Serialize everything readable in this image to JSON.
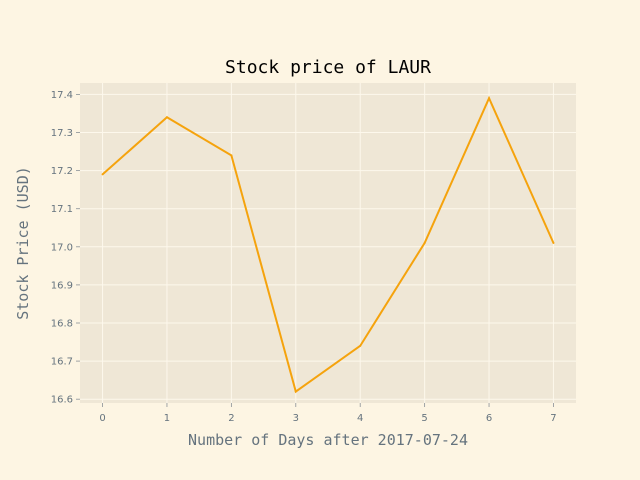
{
  "chart_data": {
    "type": "line",
    "title": "Stock price of LAUR",
    "xlabel": "Number of Days after 2017-07-24",
    "ylabel": "Stock Price (USD)",
    "x": [
      0,
      1,
      2,
      3,
      4,
      5,
      6,
      7
    ],
    "series": [
      {
        "values": [
          17.19,
          17.34,
          17.24,
          16.62,
          16.74,
          17.01,
          17.39,
          17.01
        ]
      }
    ],
    "xlim": [
      -0.35,
      7.35
    ],
    "ylim": [
      16.59,
      17.43
    ],
    "xticks": [
      "0",
      "1",
      "2",
      "3",
      "4",
      "5",
      "6",
      "7"
    ],
    "yticks": [
      "16.6",
      "16.7",
      "16.8",
      "16.9",
      "17.0",
      "17.1",
      "17.2",
      "17.3",
      "17.4"
    ],
    "grid": true,
    "line_color": "#f5a30d",
    "plot_background": "#efe7d6",
    "page_background": "#fdf5e3"
  }
}
